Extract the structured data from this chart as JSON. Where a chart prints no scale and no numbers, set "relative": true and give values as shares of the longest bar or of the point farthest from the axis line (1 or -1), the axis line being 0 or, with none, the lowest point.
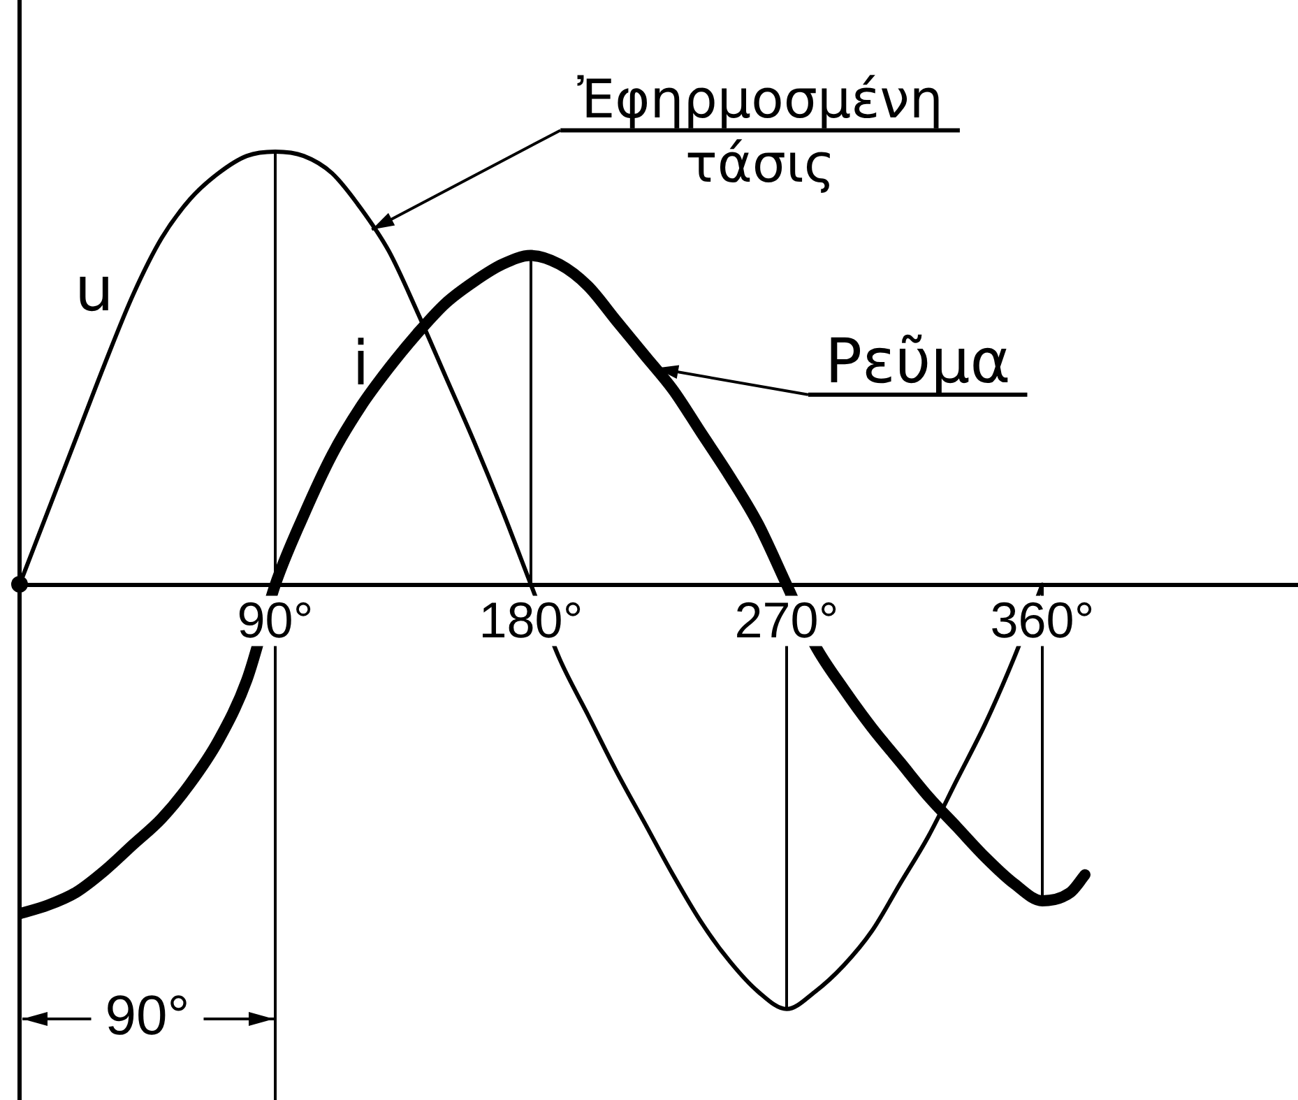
{
  "chart_data": {
    "type": "line",
    "relative": true,
    "xlim": [
      0,
      450
    ],
    "xticks": [
      {
        "value": 90,
        "label": "90°"
      },
      {
        "value": 180,
        "label": "180°"
      },
      {
        "value": 270,
        "label": "270°"
      },
      {
        "value": 360,
        "label": "360°"
      }
    ],
    "series": [
      {
        "name": "u",
        "color": "#000000",
        "x": [
          0,
          10,
          20,
          30,
          40,
          50,
          60,
          70,
          80,
          90,
          100,
          110,
          120,
          130,
          140,
          150,
          160,
          170,
          180,
          190,
          200,
          210,
          220,
          230,
          240,
          250,
          260,
          270,
          280,
          290,
          300,
          310,
          320,
          330,
          340,
          350,
          360
        ],
        "values": [
          0,
          0.17,
          0.34,
          0.51,
          0.67,
          0.8,
          0.89,
          0.95,
          0.99,
          1,
          0.99,
          0.95,
          0.87,
          0.77,
          0.63,
          0.48,
          0.33,
          0.17,
          0,
          -0.17,
          -0.3,
          -0.43,
          -0.55,
          -0.67,
          -0.78,
          -0.87,
          -0.94,
          -0.98,
          -0.94,
          -0.88,
          -0.8,
          -0.69,
          -0.58,
          -0.45,
          -0.32,
          -0.17,
          0
        ]
      },
      {
        "name": "i",
        "color": "#000000",
        "x": [
          0,
          10,
          20,
          30,
          40,
          50,
          60,
          70,
          80,
          90,
          100,
          110,
          120,
          130,
          140,
          150,
          160,
          170,
          180,
          190,
          200,
          210,
          220,
          230,
          240,
          250,
          260,
          270,
          280,
          290,
          300,
          310,
          320,
          330,
          340,
          350,
          360,
          370,
          375
        ],
        "values": [
          -0.76,
          -0.74,
          -0.71,
          -0.66,
          -0.6,
          -0.54,
          -0.46,
          -0.36,
          -0.22,
          0,
          0.16,
          0.3,
          0.41,
          0.5,
          0.58,
          0.65,
          0.7,
          0.74,
          0.76,
          0.74,
          0.69,
          0.61,
          0.53,
          0.45,
          0.35,
          0.25,
          0.14,
          0,
          -0.14,
          -0.24,
          -0.33,
          -0.41,
          -0.49,
          -0.56,
          -0.63,
          -0.69,
          -0.73,
          -0.71,
          -0.67
        ]
      }
    ],
    "ref_lines": [
      {
        "axis": "x",
        "value": 90
      },
      {
        "axis": "x",
        "value": 180
      },
      {
        "axis": "x",
        "value": 270
      },
      {
        "axis": "x",
        "value": 360
      }
    ],
    "annotations": [
      {
        "text": "Ἐφηρμοσμένη τάσις",
        "x": 124,
        "y": 0.82
      },
      {
        "text": "Ρεῦμα",
        "x": 224,
        "y": 0.5
      },
      "90°"
    ]
  }
}
